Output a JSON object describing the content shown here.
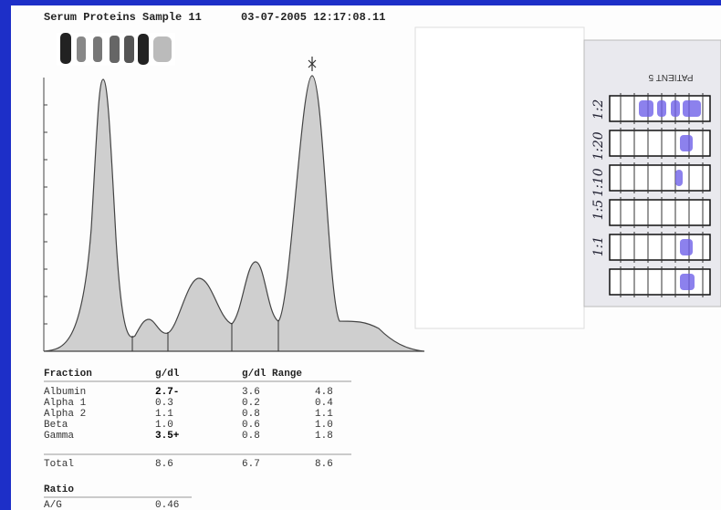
{
  "header": {
    "title": "Serum Proteins Sample 11",
    "timestamp": "03-07-2005 12:17:08.11"
  },
  "table": {
    "columns": [
      "Fraction",
      "g/dl",
      "g/dl Range"
    ],
    "rows": [
      [
        "Albumin",
        "2.7-",
        "3.6",
        "4.8"
      ],
      [
        "Alpha 1",
        "0.3",
        "0.2",
        "0.4"
      ],
      [
        "Alpha 2",
        "1.1",
        "0.8",
        "1.1"
      ],
      [
        "Beta",
        "1.0",
        "0.6",
        "1.0"
      ],
      [
        "Gamma",
        "3.5+",
        "0.8",
        "1.8"
      ]
    ],
    "total": [
      "Total",
      "8.6",
      "6.7",
      "8.6"
    ]
  },
  "ratio": {
    "title": "Ratio",
    "rows": [
      [
        "A/G",
        "0.46"
      ]
    ]
  },
  "strip": {
    "label": "PATIENT 5",
    "dilutions": [
      "1:2",
      "1:20",
      "1:10",
      "1:5",
      "1:1"
    ]
  }
}
